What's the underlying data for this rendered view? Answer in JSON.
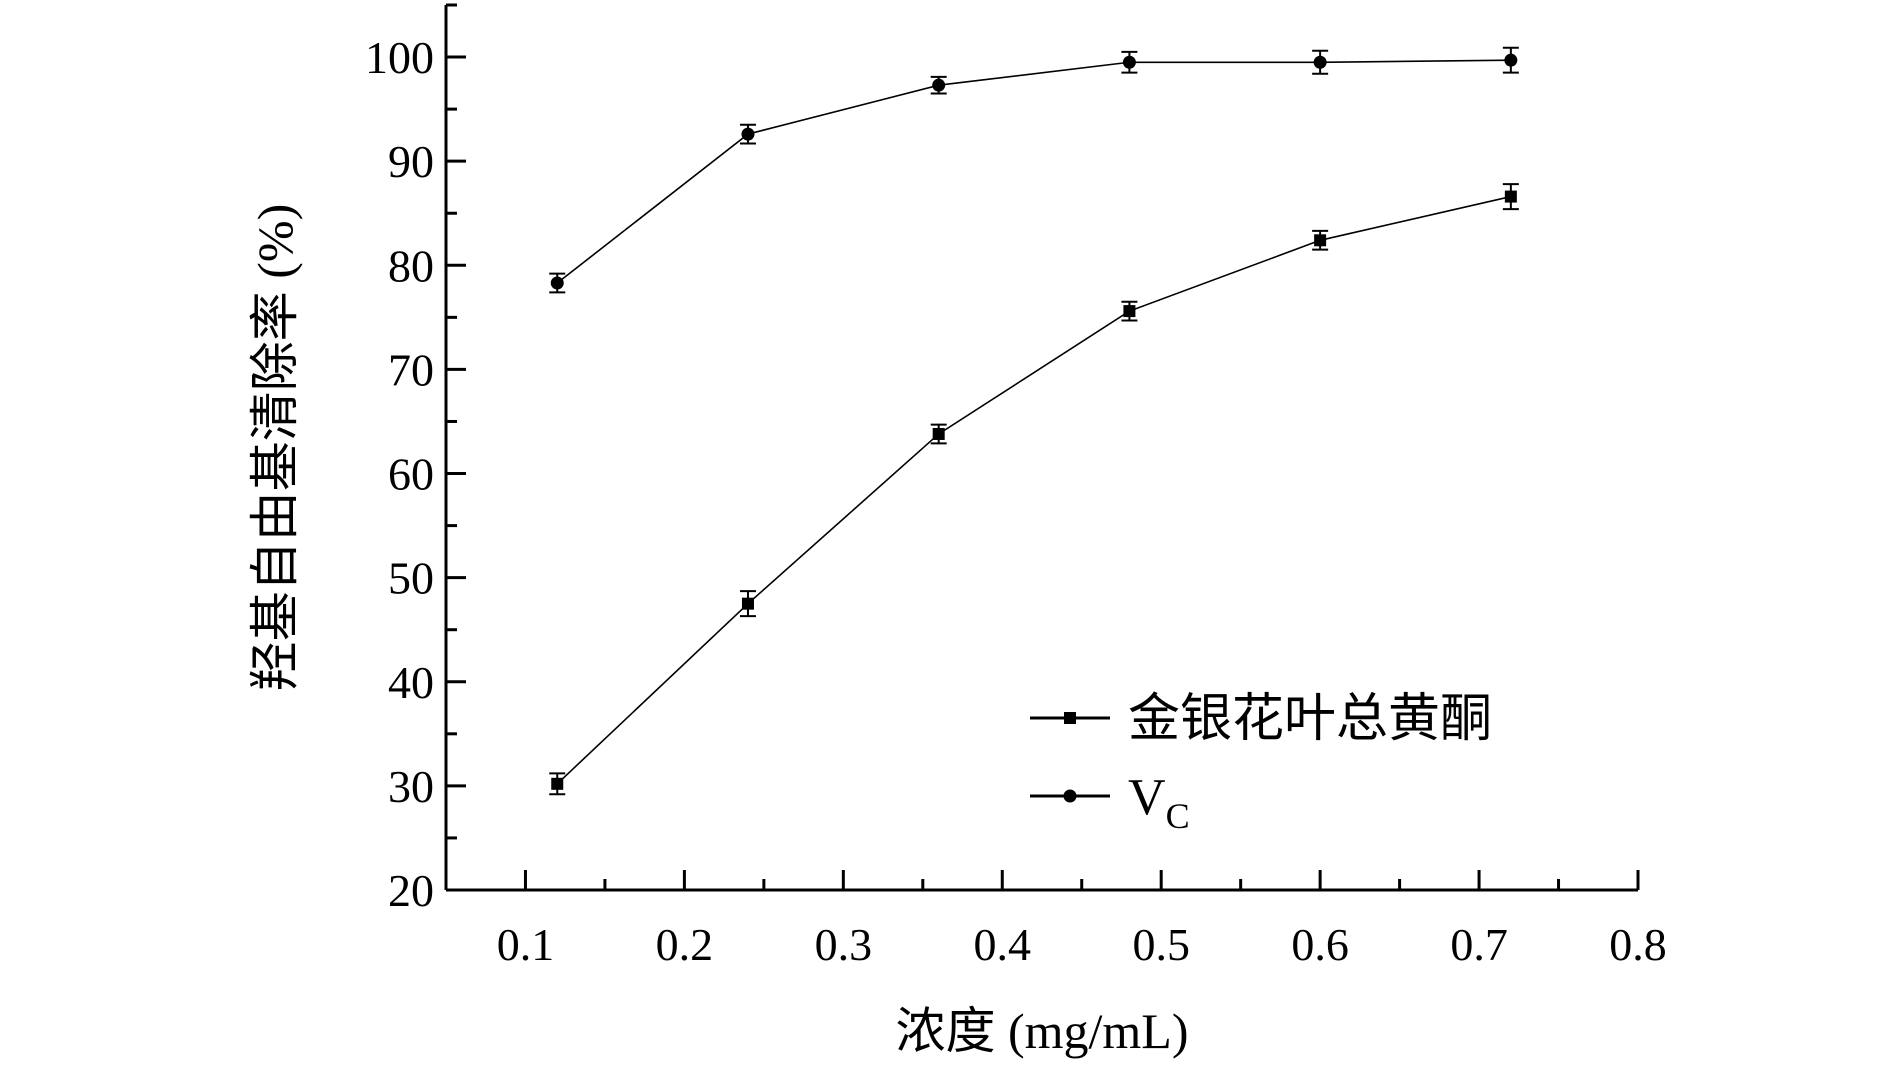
{
  "chart_data": {
    "type": "line",
    "xlabel": "浓度 (mg/mL)",
    "ylabel": "羟基自由基清除率 (%)",
    "xlim": [
      0.05,
      0.8
    ],
    "ylim": [
      20,
      105
    ],
    "x_ticks": [
      0.1,
      0.2,
      0.3,
      0.4,
      0.5,
      0.6,
      0.7,
      0.8
    ],
    "y_ticks": [
      20,
      30,
      40,
      50,
      60,
      70,
      80,
      90,
      100
    ],
    "x_tick_labels": [
      "0.1",
      "0.2",
      "0.3",
      "0.4",
      "0.5",
      "0.6",
      "0.7",
      "0.8"
    ],
    "y_tick_labels": [
      "20",
      "30",
      "40",
      "50",
      "60",
      "70",
      "80",
      "90",
      "100"
    ],
    "x": [
      0.12,
      0.24,
      0.36,
      0.48,
      0.6,
      0.72
    ],
    "series": [
      {
        "name": "金银花叶总黄酮",
        "marker": "square",
        "values": [
          30.2,
          47.5,
          63.8,
          75.6,
          82.4,
          86.6
        ],
        "errors": [
          1.0,
          1.2,
          0.9,
          0.9,
          0.9,
          1.2
        ]
      },
      {
        "name": "V",
        "name_subscript": "C",
        "marker": "circle",
        "values": [
          78.3,
          92.6,
          97.3,
          99.5,
          99.5,
          99.7
        ],
        "errors": [
          0.9,
          0.9,
          0.8,
          1.0,
          1.1,
          1.2
        ]
      }
    ],
    "legend_position": "bottom-right",
    "grid": false
  }
}
